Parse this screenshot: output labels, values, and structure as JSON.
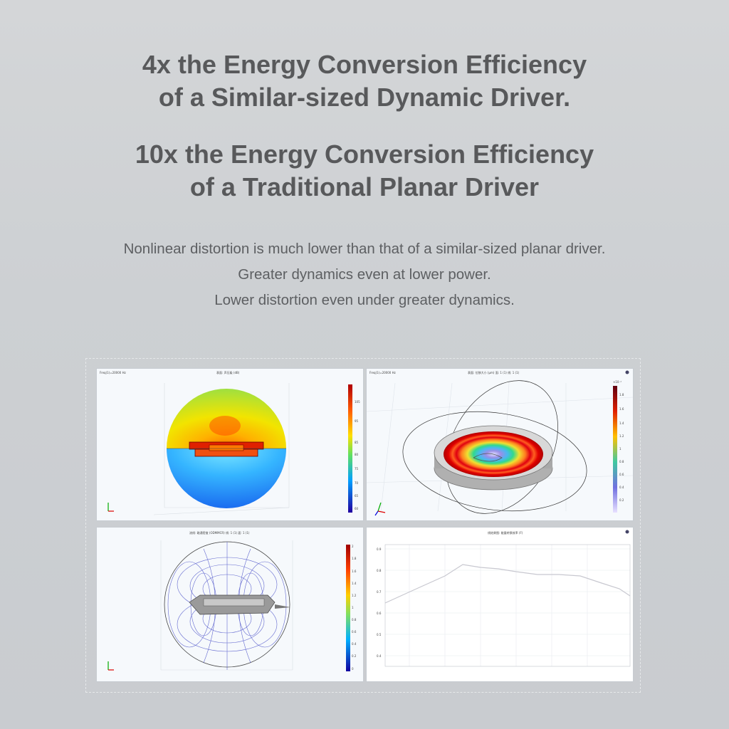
{
  "headlines": [
    {
      "line1": "4x the Energy Conversion Efficiency",
      "line2": "of a Similar-sized Dynamic Driver."
    },
    {
      "line1": "10x the Energy Conversion Efficiency",
      "line2": "of a Traditional Planar Driver"
    }
  ],
  "body_lines": [
    "Nonlinear distortion is much lower than that of a similar-sized planar driver.",
    "Greater dynamics even at lower power.",
    "Lower distortion even under greater dynamics."
  ],
  "colors": {
    "headline": "#58595b",
    "body_text": "#5d5f62",
    "background": "#cfd2d5",
    "colormap": [
      "#2a00a8",
      "#0050ff",
      "#00c8ff",
      "#40e070",
      "#f0f000",
      "#ff8000",
      "#c80000"
    ]
  },
  "panels": [
    {
      "id": "acoustic-pressure-sphere-plot"
    },
    {
      "id": "diaphragm-displacement-3d-plot"
    },
    {
      "id": "magnetic-field-lines-plot"
    },
    {
      "id": "frequency-response-line-chart"
    }
  ]
}
